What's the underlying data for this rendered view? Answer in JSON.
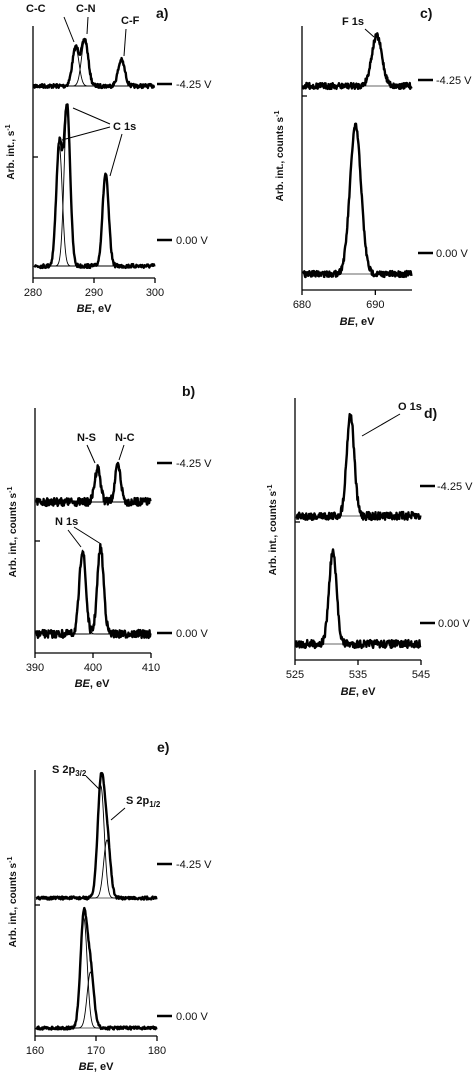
{
  "chart_data": [
    {
      "panel": "a)",
      "type": "line",
      "xlabel_italic": "BE",
      "xlabel_unit": ", eV",
      "ylabel": "Arb. int., s",
      "ylabel_sup": "-1",
      "xlim": [
        280,
        300
      ],
      "xticks": [
        280,
        290,
        300
      ],
      "baseline_noise": 4,
      "series": [
        {
          "name": "-4.25 V",
          "peaks": [
            [
              287.0,
              38
            ],
            [
              288.5,
              46
            ],
            [
              294.5,
              26
            ]
          ],
          "components": [
            [
              287.0,
              38
            ],
            [
              288.5,
              46
            ],
            [
              294.5,
              26
            ]
          ],
          "width": 0.55
        },
        {
          "name": "0.00 V",
          "peaks": [
            [
              284.3,
              120
            ],
            [
              285.6,
              158
            ],
            [
              291.9,
              92
            ]
          ],
          "components": [
            [
              284.3,
              120
            ],
            [
              285.6,
              158
            ],
            [
              291.9,
              92
            ]
          ],
          "width": 0.5
        }
      ],
      "annotations": [
        {
          "text": "C-C"
        },
        {
          "text": "C-N"
        },
        {
          "text": "C-F"
        },
        {
          "text": "C 1s"
        }
      ]
    },
    {
      "panel": "b)",
      "type": "line",
      "xlabel_italic": "BE",
      "xlabel_unit": ", eV",
      "ylabel": "Arb. int., counts s",
      "ylabel_sup": "-1",
      "xlim": [
        390,
        410
      ],
      "xticks": [
        390,
        400,
        410
      ],
      "baseline_noise": 8,
      "series": [
        {
          "name": "-4.25 V",
          "peaks": [
            [
              400.8,
              34
            ],
            [
              404.3,
              36
            ]
          ],
          "components": [
            [
              400.8,
              34
            ],
            [
              404.3,
              36
            ]
          ],
          "width": 0.5
        },
        {
          "name": "0.00 V",
          "peaks": [
            [
              398.2,
              84
            ],
            [
              401.3,
              86
            ]
          ],
          "components": [
            [
              398.2,
              84
            ],
            [
              401.3,
              86
            ]
          ],
          "width": 0.55
        }
      ],
      "annotations": [
        {
          "text": "N-S"
        },
        {
          "text": "N-C"
        },
        {
          "text": "N 1s"
        }
      ]
    },
    {
      "panel": "c)",
      "type": "line",
      "xlabel_italic": "BE",
      "xlabel_unit": ", eV",
      "ylabel": "Arb. int., counts s",
      "ylabel_sup": "-1",
      "xlim": [
        680,
        695
      ],
      "xticks": [
        680,
        690
      ],
      "baseline_noise": 6,
      "series": [
        {
          "name": "-4.25 V",
          "peaks": [
            [
              690.2,
              50
            ]
          ],
          "components": [],
          "width": 0.7
        },
        {
          "name": "0.00 V",
          "peaks": [
            [
              687.3,
              148
            ]
          ],
          "components": [],
          "width": 0.75
        }
      ],
      "annotations": [
        {
          "text": "F 1s"
        }
      ]
    },
    {
      "panel": "d)",
      "type": "line",
      "xlabel_italic": "BE",
      "xlabel_unit": ", eV",
      "ylabel": "Arb. int., counts s",
      "ylabel_sup": "-1",
      "xlim": [
        525,
        545
      ],
      "xticks": [
        525,
        535,
        545
      ],
      "baseline_noise": 8,
      "series": [
        {
          "name": "-4.25 V",
          "peaks": [
            [
              533.8,
              102
            ]
          ],
          "components": [],
          "width": 0.6
        },
        {
          "name": "0.00 V",
          "peaks": [
            [
              531.0,
              92
            ]
          ],
          "components": [],
          "width": 0.6
        }
      ],
      "annotations": [
        {
          "text": "O 1s"
        }
      ]
    },
    {
      "panel": "e)",
      "type": "line",
      "xlabel_italic": "BE",
      "xlabel_unit": ", eV",
      "ylabel": "Arb. int., counts s",
      "ylabel_sup": "-1",
      "xlim": [
        160,
        180
      ],
      "xticks": [
        160,
        170,
        180
      ],
      "baseline_noise": 3,
      "series": [
        {
          "name": "-4.25 V",
          "peaks": [
            [
              170.8,
              112
            ],
            [
              171.8,
              58
            ]
          ],
          "components": [
            [
              170.8,
              112
            ],
            [
              171.8,
              58
            ]
          ],
          "width": 0.55
        },
        {
          "name": "0.00 V",
          "peaks": [
            [
              168.0,
              110
            ],
            [
              169.1,
              56
            ]
          ],
          "components": [
            [
              168.0,
              110
            ],
            [
              169.1,
              56
            ]
          ],
          "width": 0.55
        }
      ],
      "annotations": [
        {
          "text": "S 2p",
          "sub": "3/2"
        },
        {
          "text": "S 2p",
          "sub": "1/2"
        }
      ]
    }
  ]
}
